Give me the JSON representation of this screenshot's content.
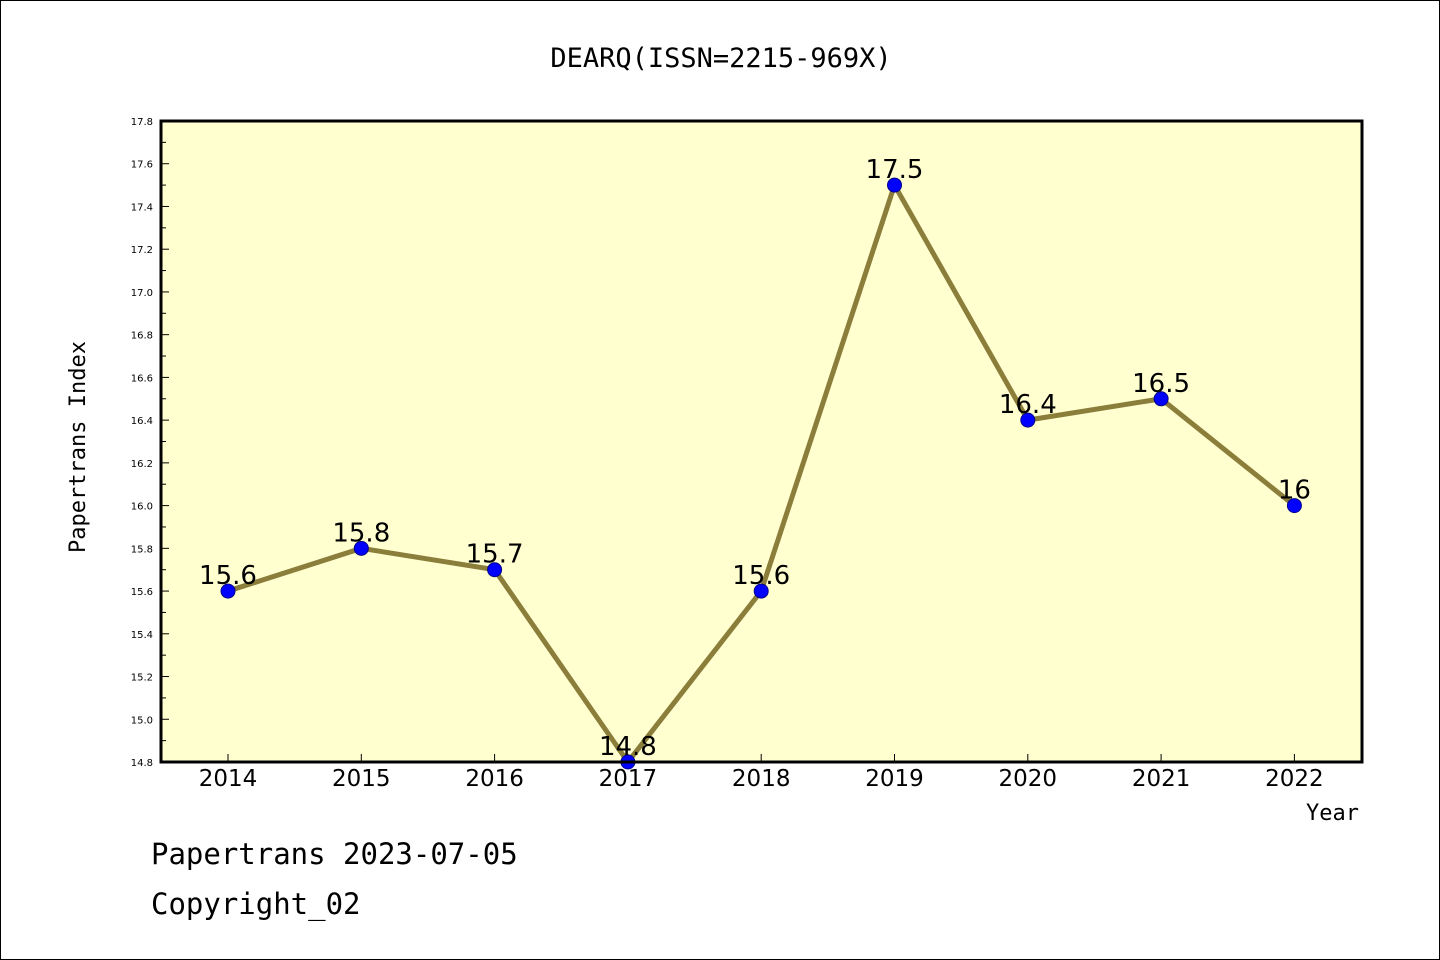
{
  "chart_data": {
    "type": "line",
    "title": "DEARQ(ISSN=2215-969X)",
    "xlabel": "Year",
    "ylabel": "Papertrans Index",
    "categories": [
      "2014",
      "2015",
      "2016",
      "2017",
      "2018",
      "2019",
      "2020",
      "2021",
      "2022"
    ],
    "series": [
      {
        "values": [
          15.6,
          15.8,
          15.7,
          14.8,
          15.6,
          17.5,
          16.4,
          16.5,
          16.0
        ],
        "data_labels": [
          "15.6",
          "15.8",
          "15.7",
          "14.8",
          "15.6",
          "17.5",
          "16.4",
          "16.5",
          "16"
        ]
      }
    ],
    "ylim": [
      14.8,
      17.8
    ],
    "yticks": [
      "14.8",
      "15.0",
      "15.2",
      "15.4",
      "15.6",
      "15.8",
      "16.0",
      "16.2",
      "16.4",
      "16.6",
      "16.8",
      "17.0",
      "17.2",
      "17.4",
      "17.6",
      "17.8"
    ],
    "grid": false,
    "legend": "none",
    "colors": {
      "plot_background": "#ffffd0",
      "line": "#8b7d3a",
      "marker_fill": "#0000ff",
      "marker_edge": "#00008b",
      "frame": "#000000"
    }
  },
  "footer": {
    "line1": "Papertrans 2023-07-05",
    "line2": "Copyright_02"
  }
}
